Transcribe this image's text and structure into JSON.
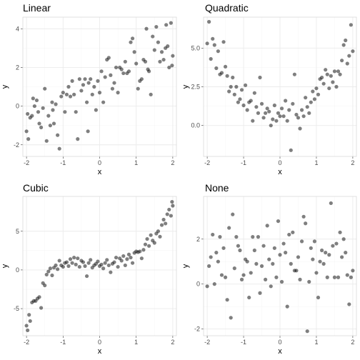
{
  "chart_data": [
    {
      "type": "scatter",
      "title": "Linear",
      "xlabel": "x",
      "ylabel": "y",
      "xlim": [
        -2.1,
        2.1
      ],
      "ylim": [
        -2.6,
        4.6
      ],
      "xticks": [
        -2,
        -1,
        0,
        1,
        2
      ],
      "xtick_labels": [
        "-2",
        "-1",
        "0",
        "1",
        "2"
      ],
      "yticks": [
        -2,
        0,
        2,
        4
      ],
      "ytick_labels": [
        "-2",
        "0",
        "2",
        "4"
      ],
      "grid": true,
      "point_color": "#000000",
      "points": [
        [
          -2.0,
          -1.3
        ],
        [
          -1.97,
          -0.4
        ],
        [
          -1.95,
          -1.7
        ],
        [
          -1.9,
          -0.6
        ],
        [
          -1.85,
          -0.5
        ],
        [
          -1.82,
          0.4
        ],
        [
          -1.78,
          0.0
        ],
        [
          -1.72,
          0.3
        ],
        [
          -1.68,
          -0.3
        ],
        [
          -1.65,
          -0.9
        ],
        [
          -1.6,
          -1.1
        ],
        [
          -1.55,
          -0.1
        ],
        [
          -1.5,
          0.9
        ],
        [
          -1.45,
          -1.8
        ],
        [
          -1.4,
          -0.5
        ],
        [
          -1.35,
          -1.0
        ],
        [
          -1.3,
          0.2
        ],
        [
          -1.28,
          -0.2
        ],
        [
          -1.25,
          -0.9
        ],
        [
          -1.2,
          0.1
        ],
        [
          -1.15,
          -1.5
        ],
        [
          -1.1,
          -2.2
        ],
        [
          -1.05,
          0.5
        ],
        [
          -1.0,
          0.7
        ],
        [
          -0.95,
          -0.3
        ],
        [
          -0.9,
          0.6
        ],
        [
          -0.85,
          1.0
        ],
        [
          -0.8,
          0.5
        ],
        [
          -0.75,
          1.3
        ],
        [
          -0.7,
          0.6
        ],
        [
          -0.65,
          -0.3
        ],
        [
          -0.6,
          -1.7
        ],
        [
          -0.55,
          1.4
        ],
        [
          -0.5,
          0.8
        ],
        [
          -0.45,
          1.1
        ],
        [
          -0.4,
          1.4
        ],
        [
          -0.35,
          0.2
        ],
        [
          -0.32,
          -1.3
        ],
        [
          -0.3,
          1.2
        ],
        [
          -0.25,
          1.4
        ],
        [
          -0.2,
          0.6
        ],
        [
          -0.15,
          1.0
        ],
        [
          -0.1,
          -0.2
        ],
        [
          -0.05,
          1.3
        ],
        [
          0.0,
          0.7
        ],
        [
          0.05,
          1.8
        ],
        [
          0.1,
          0.2
        ],
        [
          0.15,
          1.5
        ],
        [
          0.2,
          2.4
        ],
        [
          0.25,
          2.5
        ],
        [
          0.3,
          1.6
        ],
        [
          0.35,
          0.9
        ],
        [
          0.4,
          1.2
        ],
        [
          0.45,
          2.0
        ],
        [
          0.5,
          0.7
        ],
        [
          0.55,
          2.0
        ],
        [
          0.6,
          1.9
        ],
        [
          0.65,
          1.7
        ],
        [
          0.7,
          2.3
        ],
        [
          0.75,
          1.7
        ],
        [
          0.8,
          1.8
        ],
        [
          0.85,
          3.3
        ],
        [
          0.9,
          3.5
        ],
        [
          0.95,
          2.8
        ],
        [
          1.0,
          2.2
        ],
        [
          1.05,
          0.9
        ],
        [
          1.1,
          1.3
        ],
        [
          1.15,
          1.4
        ],
        [
          1.2,
          2.4
        ],
        [
          1.25,
          2.3
        ],
        [
          1.28,
          4.0
        ],
        [
          1.32,
          1.9
        ],
        [
          1.35,
          1.8
        ],
        [
          1.4,
          0.6
        ],
        [
          1.45,
          3.6
        ],
        [
          1.5,
          2.9
        ],
        [
          1.55,
          4.1
        ],
        [
          1.6,
          3.3
        ],
        [
          1.65,
          2.3
        ],
        [
          1.7,
          2.8
        ],
        [
          1.75,
          2.4
        ],
        [
          1.8,
          3.0
        ],
        [
          1.82,
          4.2
        ],
        [
          1.86,
          3.1
        ],
        [
          1.9,
          2.0
        ],
        [
          1.95,
          4.3
        ],
        [
          1.98,
          2.1
        ],
        [
          2.0,
          2.6
        ]
      ]
    },
    {
      "type": "scatter",
      "title": "Quadratic",
      "xlabel": "x",
      "ylabel": "y",
      "xlim": [
        -2.1,
        2.1
      ],
      "ylim": [
        -2.0,
        7.0
      ],
      "xticks": [
        -2,
        -1,
        0,
        1,
        2
      ],
      "xtick_labels": [
        "-2",
        "-1",
        "0",
        "1",
        "2"
      ],
      "yticks": [
        0,
        2.5,
        5
      ],
      "ytick_labels": [
        "0.0",
        "2.5",
        "5.0"
      ],
      "grid": true,
      "point_color": "#000000",
      "points": [
        [
          -2.0,
          5.3
        ],
        [
          -1.95,
          6.7
        ],
        [
          -1.9,
          4.3
        ],
        [
          -1.85,
          5.6
        ],
        [
          -1.8,
          5.2
        ],
        [
          -1.75,
          3.7
        ],
        [
          -1.7,
          4.8
        ],
        [
          -1.65,
          3.3
        ],
        [
          -1.6,
          3.4
        ],
        [
          -1.55,
          5.4
        ],
        [
          -1.5,
          3.8
        ],
        [
          -1.45,
          3.2
        ],
        [
          -1.4,
          2.2
        ],
        [
          -1.35,
          2.5
        ],
        [
          -1.3,
          3.1
        ],
        [
          -1.25,
          2.0
        ],
        [
          -1.2,
          2.5
        ],
        [
          -1.15,
          1.5
        ],
        [
          -1.1,
          1.7
        ],
        [
          -1.05,
          2.3
        ],
        [
          -1.0,
          1.3
        ],
        [
          -0.95,
          2.6
        ],
        [
          -0.9,
          1.0
        ],
        [
          -0.85,
          1.5
        ],
        [
          -0.8,
          1.6
        ],
        [
          -0.75,
          0.3
        ],
        [
          -0.7,
          2.1
        ],
        [
          -0.65,
          1.2
        ],
        [
          -0.6,
          0.8
        ],
        [
          -0.55,
          3.1
        ],
        [
          -0.5,
          1.4
        ],
        [
          -0.45,
          0.5
        ],
        [
          -0.4,
          0.8
        ],
        [
          -0.35,
          1.1
        ],
        [
          -0.3,
          0.9
        ],
        [
          -0.25,
          0.0
        ],
        [
          -0.2,
          0.4
        ],
        [
          -0.15,
          1.3
        ],
        [
          -0.1,
          0.3
        ],
        [
          -0.05,
          0.8
        ],
        [
          0.0,
          0.6
        ],
        [
          0.05,
          1.1
        ],
        [
          0.1,
          0.6
        ],
        [
          0.15,
          1.6
        ],
        [
          0.2,
          0.3
        ],
        [
          0.25,
          1.0
        ],
        [
          0.3,
          -1.6
        ],
        [
          0.35,
          1.4
        ],
        [
          0.4,
          3.3
        ],
        [
          0.45,
          0.7
        ],
        [
          0.5,
          0.5
        ],
        [
          0.55,
          -0.2
        ],
        [
          0.6,
          1.0
        ],
        [
          0.65,
          0.6
        ],
        [
          0.7,
          1.8
        ],
        [
          0.75,
          1.2
        ],
        [
          0.8,
          0.8
        ],
        [
          0.85,
          1.5
        ],
        [
          0.9,
          2.2
        ],
        [
          0.95,
          1.7
        ],
        [
          1.0,
          2.4
        ],
        [
          1.05,
          2.0
        ],
        [
          1.1,
          3.0
        ],
        [
          1.15,
          3.1
        ],
        [
          1.2,
          2.7
        ],
        [
          1.25,
          3.6
        ],
        [
          1.3,
          3.3
        ],
        [
          1.35,
          2.4
        ],
        [
          1.4,
          3.2
        ],
        [
          1.45,
          2.8
        ],
        [
          1.5,
          3.5
        ],
        [
          1.55,
          2.5
        ],
        [
          1.6,
          3.5
        ],
        [
          1.65,
          3.3
        ],
        [
          1.7,
          4.2
        ],
        [
          1.75,
          5.2
        ],
        [
          1.8,
          5.5
        ],
        [
          1.85,
          4.0
        ],
        [
          1.9,
          4.5
        ],
        [
          1.95,
          6.5
        ],
        [
          2.0,
          4.8
        ]
      ]
    },
    {
      "type": "scatter",
      "title": "Cubic",
      "xlabel": "x",
      "ylabel": "y",
      "xlim": [
        -2.1,
        2.1
      ],
      "ylim": [
        -8.5,
        9.5
      ],
      "xticks": [
        -2,
        -1,
        0,
        1,
        2
      ],
      "xtick_labels": [
        "-2",
        "-1",
        "0",
        "1",
        "2"
      ],
      "yticks": [
        -5,
        0,
        5
      ],
      "ytick_labels": [
        "-5",
        "0",
        "5"
      ],
      "grid": true,
      "point_color": "#000000",
      "points": [
        [
          -2.0,
          -7.2
        ],
        [
          -1.97,
          -7.8
        ],
        [
          -1.93,
          -5.8
        ],
        [
          -1.9,
          -6.6
        ],
        [
          -1.85,
          -4.2
        ],
        [
          -1.8,
          -4.0
        ],
        [
          -1.75,
          -4.0
        ],
        [
          -1.7,
          -3.7
        ],
        [
          -1.65,
          -3.5
        ],
        [
          -1.6,
          -4.9
        ],
        [
          -1.55,
          -1.7
        ],
        [
          -1.5,
          -2.0
        ],
        [
          -1.45,
          -0.6
        ],
        [
          -1.4,
          -0.2
        ],
        [
          -1.35,
          0.2
        ],
        [
          -1.3,
          -0.7
        ],
        [
          -1.25,
          0.3
        ],
        [
          -1.2,
          0.6
        ],
        [
          -1.15,
          0.1
        ],
        [
          -1.1,
          1.2
        ],
        [
          -1.05,
          0.6
        ],
        [
          -1.0,
          0.4
        ],
        [
          -0.95,
          0.9
        ],
        [
          -0.9,
          1.0
        ],
        [
          -0.85,
          0.5
        ],
        [
          -0.8,
          1.4
        ],
        [
          -0.75,
          0.9
        ],
        [
          -0.7,
          1.6
        ],
        [
          -0.65,
          0.7
        ],
        [
          -0.6,
          1.5
        ],
        [
          -0.55,
          0.4
        ],
        [
          -0.5,
          1.2
        ],
        [
          -0.45,
          1.0
        ],
        [
          -0.4,
          0.5
        ],
        [
          -0.35,
          -0.8
        ],
        [
          -0.3,
          0.9
        ],
        [
          -0.25,
          1.3
        ],
        [
          -0.2,
          0.3
        ],
        [
          -0.15,
          0.6
        ],
        [
          -0.1,
          0.8
        ],
        [
          -0.05,
          1.1
        ],
        [
          0.0,
          0.5
        ],
        [
          0.05,
          0.7
        ],
        [
          0.1,
          0.2
        ],
        [
          0.15,
          0.9
        ],
        [
          0.2,
          1.3
        ],
        [
          0.25,
          0.6
        ],
        [
          0.3,
          -0.3
        ],
        [
          0.35,
          0.8
        ],
        [
          0.4,
          1.0
        ],
        [
          0.45,
          1.6
        ],
        [
          0.5,
          0.4
        ],
        [
          0.55,
          1.5
        ],
        [
          0.6,
          1.2
        ],
        [
          0.65,
          1.8
        ],
        [
          0.7,
          0.6
        ],
        [
          0.75,
          1.4
        ],
        [
          0.8,
          2.0
        ],
        [
          0.85,
          1.6
        ],
        [
          0.9,
          0.9
        ],
        [
          0.95,
          2.2
        ],
        [
          1.0,
          2.4
        ],
        [
          1.05,
          2.3
        ],
        [
          1.1,
          2.4
        ],
        [
          1.15,
          1.5
        ],
        [
          1.2,
          2.6
        ],
        [
          1.25,
          3.3
        ],
        [
          1.3,
          4.0
        ],
        [
          1.35,
          3.1
        ],
        [
          1.4,
          4.5
        ],
        [
          1.45,
          3.8
        ],
        [
          1.5,
          3.5
        ],
        [
          1.55,
          4.7
        ],
        [
          1.6,
          5.0
        ],
        [
          1.65,
          4.3
        ],
        [
          1.7,
          5.8
        ],
        [
          1.75,
          6.5
        ],
        [
          1.8,
          6.0
        ],
        [
          1.85,
          7.2
        ],
        [
          1.9,
          7.8
        ],
        [
          1.95,
          7.0
        ],
        [
          1.98,
          8.8
        ],
        [
          2.0,
          8.3
        ]
      ]
    },
    {
      "type": "scatter",
      "title": "None",
      "xlabel": "x",
      "ylabel": "y",
      "xlim": [
        -2.1,
        2.1
      ],
      "ylim": [
        -2.3,
        3.9
      ],
      "xticks": [
        -2,
        -1,
        0,
        1,
        2
      ],
      "xtick_labels": [
        "-2",
        "-1",
        "0",
        "1",
        "2"
      ],
      "yticks": [
        -2,
        0,
        2
      ],
      "ytick_labels": [
        "-2",
        "0",
        "2"
      ],
      "grid": true,
      "point_color": "#000000",
      "points": [
        [
          -2.0,
          -0.1
        ],
        [
          -1.95,
          0.8
        ],
        [
          -1.9,
          1.2
        ],
        [
          -1.85,
          2.2
        ],
        [
          -1.8,
          0.0
        ],
        [
          -1.75,
          1.4
        ],
        [
          -1.7,
          1.0
        ],
        [
          -1.65,
          2.1
        ],
        [
          -1.6,
          0.4
        ],
        [
          -1.55,
          1.6
        ],
        [
          -1.5,
          0.3
        ],
        [
          -1.45,
          -0.7
        ],
        [
          -1.4,
          2.5
        ],
        [
          -1.35,
          -1.5
        ],
        [
          -1.3,
          3.1
        ],
        [
          -1.25,
          0.7
        ],
        [
          -1.2,
          2.1
        ],
        [
          -1.15,
          1.7
        ],
        [
          -1.1,
          1.5
        ],
        [
          -1.05,
          0.2
        ],
        [
          -1.0,
          0.4
        ],
        [
          -0.95,
          1.1
        ],
        [
          -0.9,
          1.0
        ],
        [
          -0.85,
          -0.6
        ],
        [
          -0.8,
          0.5
        ],
        [
          -0.75,
          2.1
        ],
        [
          -0.7,
          1.5
        ],
        [
          -0.65,
          0.9
        ],
        [
          -0.6,
          2.1
        ],
        [
          -0.55,
          -0.4
        ],
        [
          -0.5,
          0.8
        ],
        [
          -0.45,
          1.7
        ],
        [
          -0.4,
          0.2
        ],
        [
          -0.35,
          2.6
        ],
        [
          -0.3,
          1.1
        ],
        [
          -0.25,
          -0.1
        ],
        [
          -0.2,
          0.9
        ],
        [
          -0.15,
          1.6
        ],
        [
          -0.1,
          0.3
        ],
        [
          -0.05,
          2.8
        ],
        [
          0.0,
          1.3
        ],
        [
          0.05,
          0.1
        ],
        [
          0.1,
          1.8
        ],
        [
          0.15,
          1.4
        ],
        [
          0.2,
          -1.0
        ],
        [
          0.25,
          2.2
        ],
        [
          0.3,
          0.9
        ],
        [
          0.35,
          2.3
        ],
        [
          0.4,
          0.6
        ],
        [
          0.45,
          0.6
        ],
        [
          0.5,
          1.2
        ],
        [
          0.55,
          0.2
        ],
        [
          0.6,
          1.9
        ],
        [
          0.65,
          3.0
        ],
        [
          0.7,
          2.7
        ],
        [
          0.75,
          -2.1
        ],
        [
          0.8,
          0.1
        ],
        [
          0.85,
          1.6
        ],
        [
          0.9,
          1.1
        ],
        [
          0.95,
          1.9
        ],
        [
          1.0,
          0.5
        ],
        [
          1.05,
          -0.6
        ],
        [
          1.1,
          1.0
        ],
        [
          1.15,
          1.5
        ],
        [
          1.2,
          0.9
        ],
        [
          1.25,
          1.4
        ],
        [
          1.3,
          0.3
        ],
        [
          1.35,
          1.3
        ],
        [
          1.4,
          3.6
        ],
        [
          1.45,
          1.7
        ],
        [
          1.5,
          0.3
        ],
        [
          1.55,
          1.8
        ],
        [
          1.6,
          0.3
        ],
        [
          1.65,
          2.3
        ],
        [
          1.7,
          1.2
        ],
        [
          1.75,
          2.0
        ],
        [
          1.8,
          1.4
        ],
        [
          1.85,
          0.4
        ],
        [
          1.9,
          -0.9
        ],
        [
          1.95,
          0.3
        ],
        [
          2.0,
          0.6
        ]
      ]
    }
  ]
}
